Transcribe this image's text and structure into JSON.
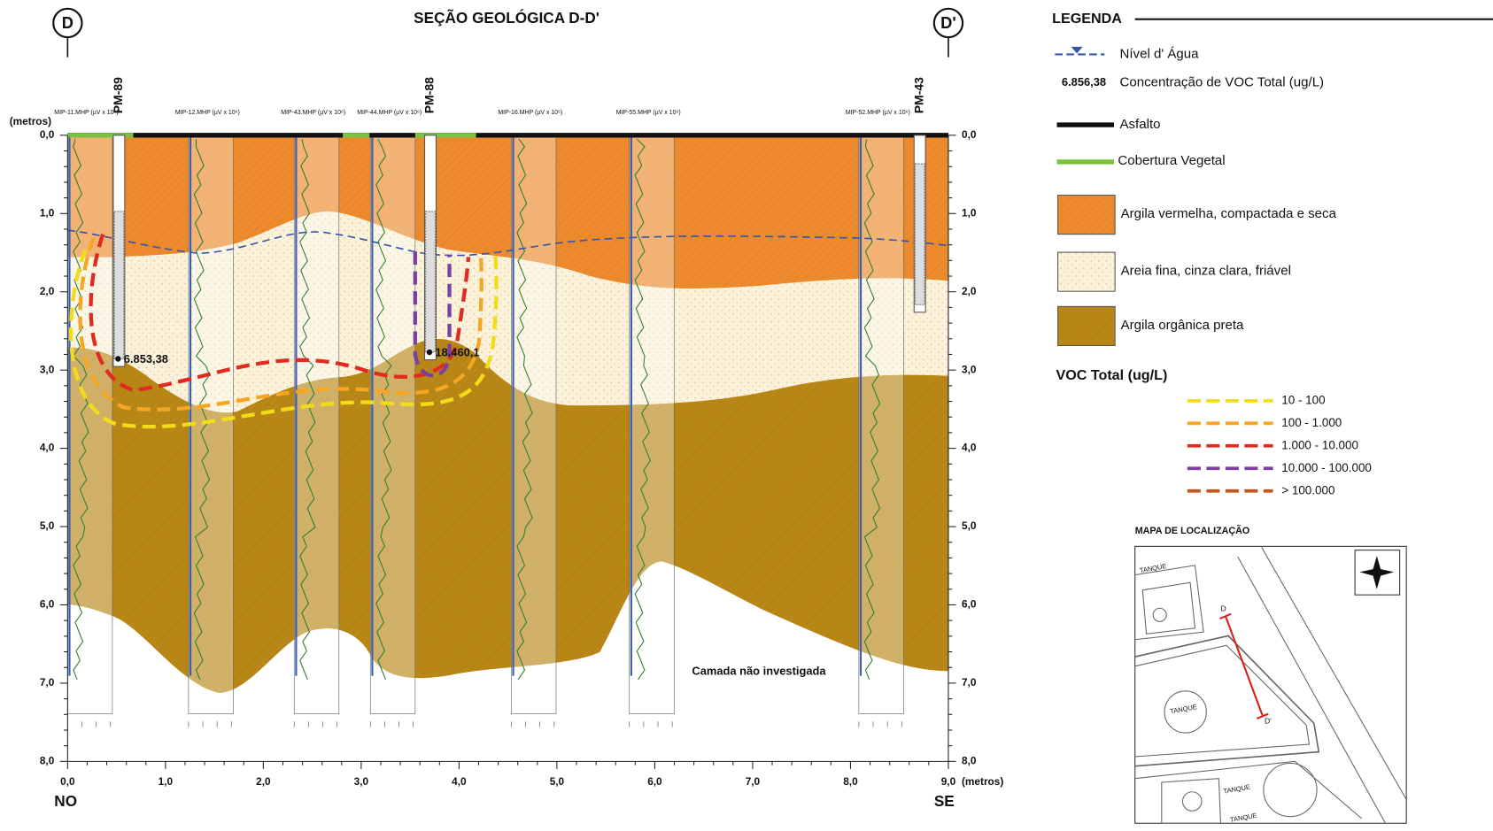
{
  "title": "SEÇÃO GEOLÓGICA D-D'",
  "section_markers": {
    "left": "D",
    "right": "D'"
  },
  "directions": {
    "left": "NO",
    "right": "SE"
  },
  "y_axis": {
    "unit": "(metros)",
    "labels": [
      "0,0",
      "1,0",
      "2,0",
      "3,0",
      "4,0",
      "5,0",
      "6,0",
      "7,0",
      "8,0"
    ]
  },
  "x_axis": {
    "unit": "(metros)",
    "labels": [
      "0,0",
      "1,0",
      "2,0",
      "3,0",
      "4,0",
      "5,0",
      "6,0",
      "7,0",
      "8,0",
      "9,0"
    ]
  },
  "wells": [
    {
      "label": "PM-89",
      "concentration": "6.853,38"
    },
    {
      "label": "PM-88",
      "concentration": "18.460,1"
    },
    {
      "label": "PM-43"
    }
  ],
  "probes": [
    {
      "label": "MIP-11.MHP (µV x 10⁶)"
    },
    {
      "label": "MIP-12.MHP (µV x 10⁶)"
    },
    {
      "label": "MIP-43.MHP (µV x 10⁶)"
    },
    {
      "label": "MIP-44.MHP (µV x 10⁶)"
    },
    {
      "label": "MIP-16.MHP (µV x 10⁶)"
    },
    {
      "label": "MIP-55.MHP (µV x 10⁶)"
    },
    {
      "label": "MIP-52.MHP (µV x 10⁶)"
    }
  ],
  "annotation": "Camada não investigada",
  "legend": {
    "title": "LEGENDA",
    "water_level": "Nível d' Água",
    "concentration_example": "6.856,38",
    "concentration_label": "Concentração de VOC Total (ug/L)",
    "asphalt": "Asfalto",
    "vegetation": "Cobertura Vegetal",
    "red_clay": "Argila vermelha, compactada e seca",
    "sand": "Areia fina, cinza clara, friável",
    "organic_clay": "Argila orgânica preta"
  },
  "voc_legend": {
    "title": "VOC Total (ug/L)",
    "items": [
      {
        "label": "10 - 100",
        "color": "#f2dc1a"
      },
      {
        "label": "100 - 1.000",
        "color": "#f5a623"
      },
      {
        "label": "1.000 - 10.000",
        "color": "#e02a22"
      },
      {
        "label": "10.000 - 100.000",
        "color": "#7a3fa0"
      },
      {
        "label": "> 100.000",
        "color": "#c8561a"
      }
    ]
  },
  "map": {
    "title": "MAPA DE LOCALIZAÇÃO",
    "tank_labels": [
      "TANQUE",
      "TANQUE",
      "TANQUE",
      "TANQUE"
    ],
    "section_start": "D",
    "section_end": "D'"
  }
}
